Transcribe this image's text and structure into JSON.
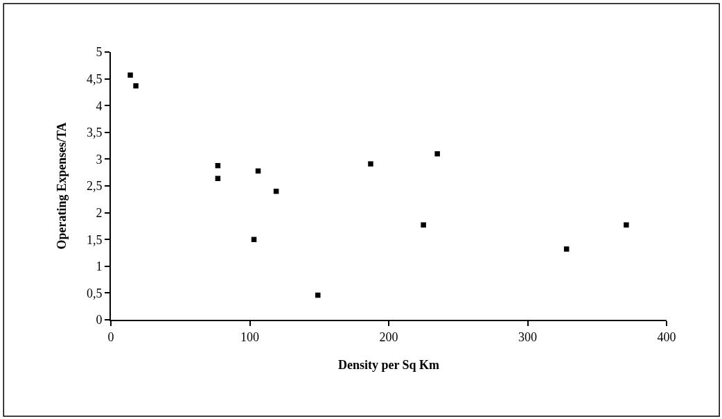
{
  "chart_data": {
    "type": "scatter",
    "xlabel": "Density per Sq Km",
    "ylabel": "Operating Expenses/TA",
    "x": [
      14,
      18,
      77,
      77,
      106,
      119,
      103,
      149,
      187,
      235,
      225,
      328,
      371
    ],
    "values": [
      4.57,
      4.37,
      2.88,
      2.64,
      2.78,
      2.4,
      1.5,
      0.46,
      2.91,
      3.1,
      1.77,
      1.32,
      1.77
    ],
    "color": "#000000",
    "marker": "square",
    "xlim": [
      0,
      400
    ],
    "xticks": [
      0,
      100,
      200,
      300,
      400
    ],
    "ylim": [
      0,
      5
    ],
    "yticks": [
      0,
      {
        "value": 0.5,
        "label": "0,5"
      },
      1,
      {
        "value": 1.5,
        "label": "1,5"
      },
      2,
      {
        "value": 2.5,
        "label": "2,5"
      },
      3,
      {
        "value": 3.5,
        "label": "3,5"
      },
      4,
      {
        "value": 4.5,
        "label": "4,5"
      },
      5
    ],
    "legend": false
  }
}
